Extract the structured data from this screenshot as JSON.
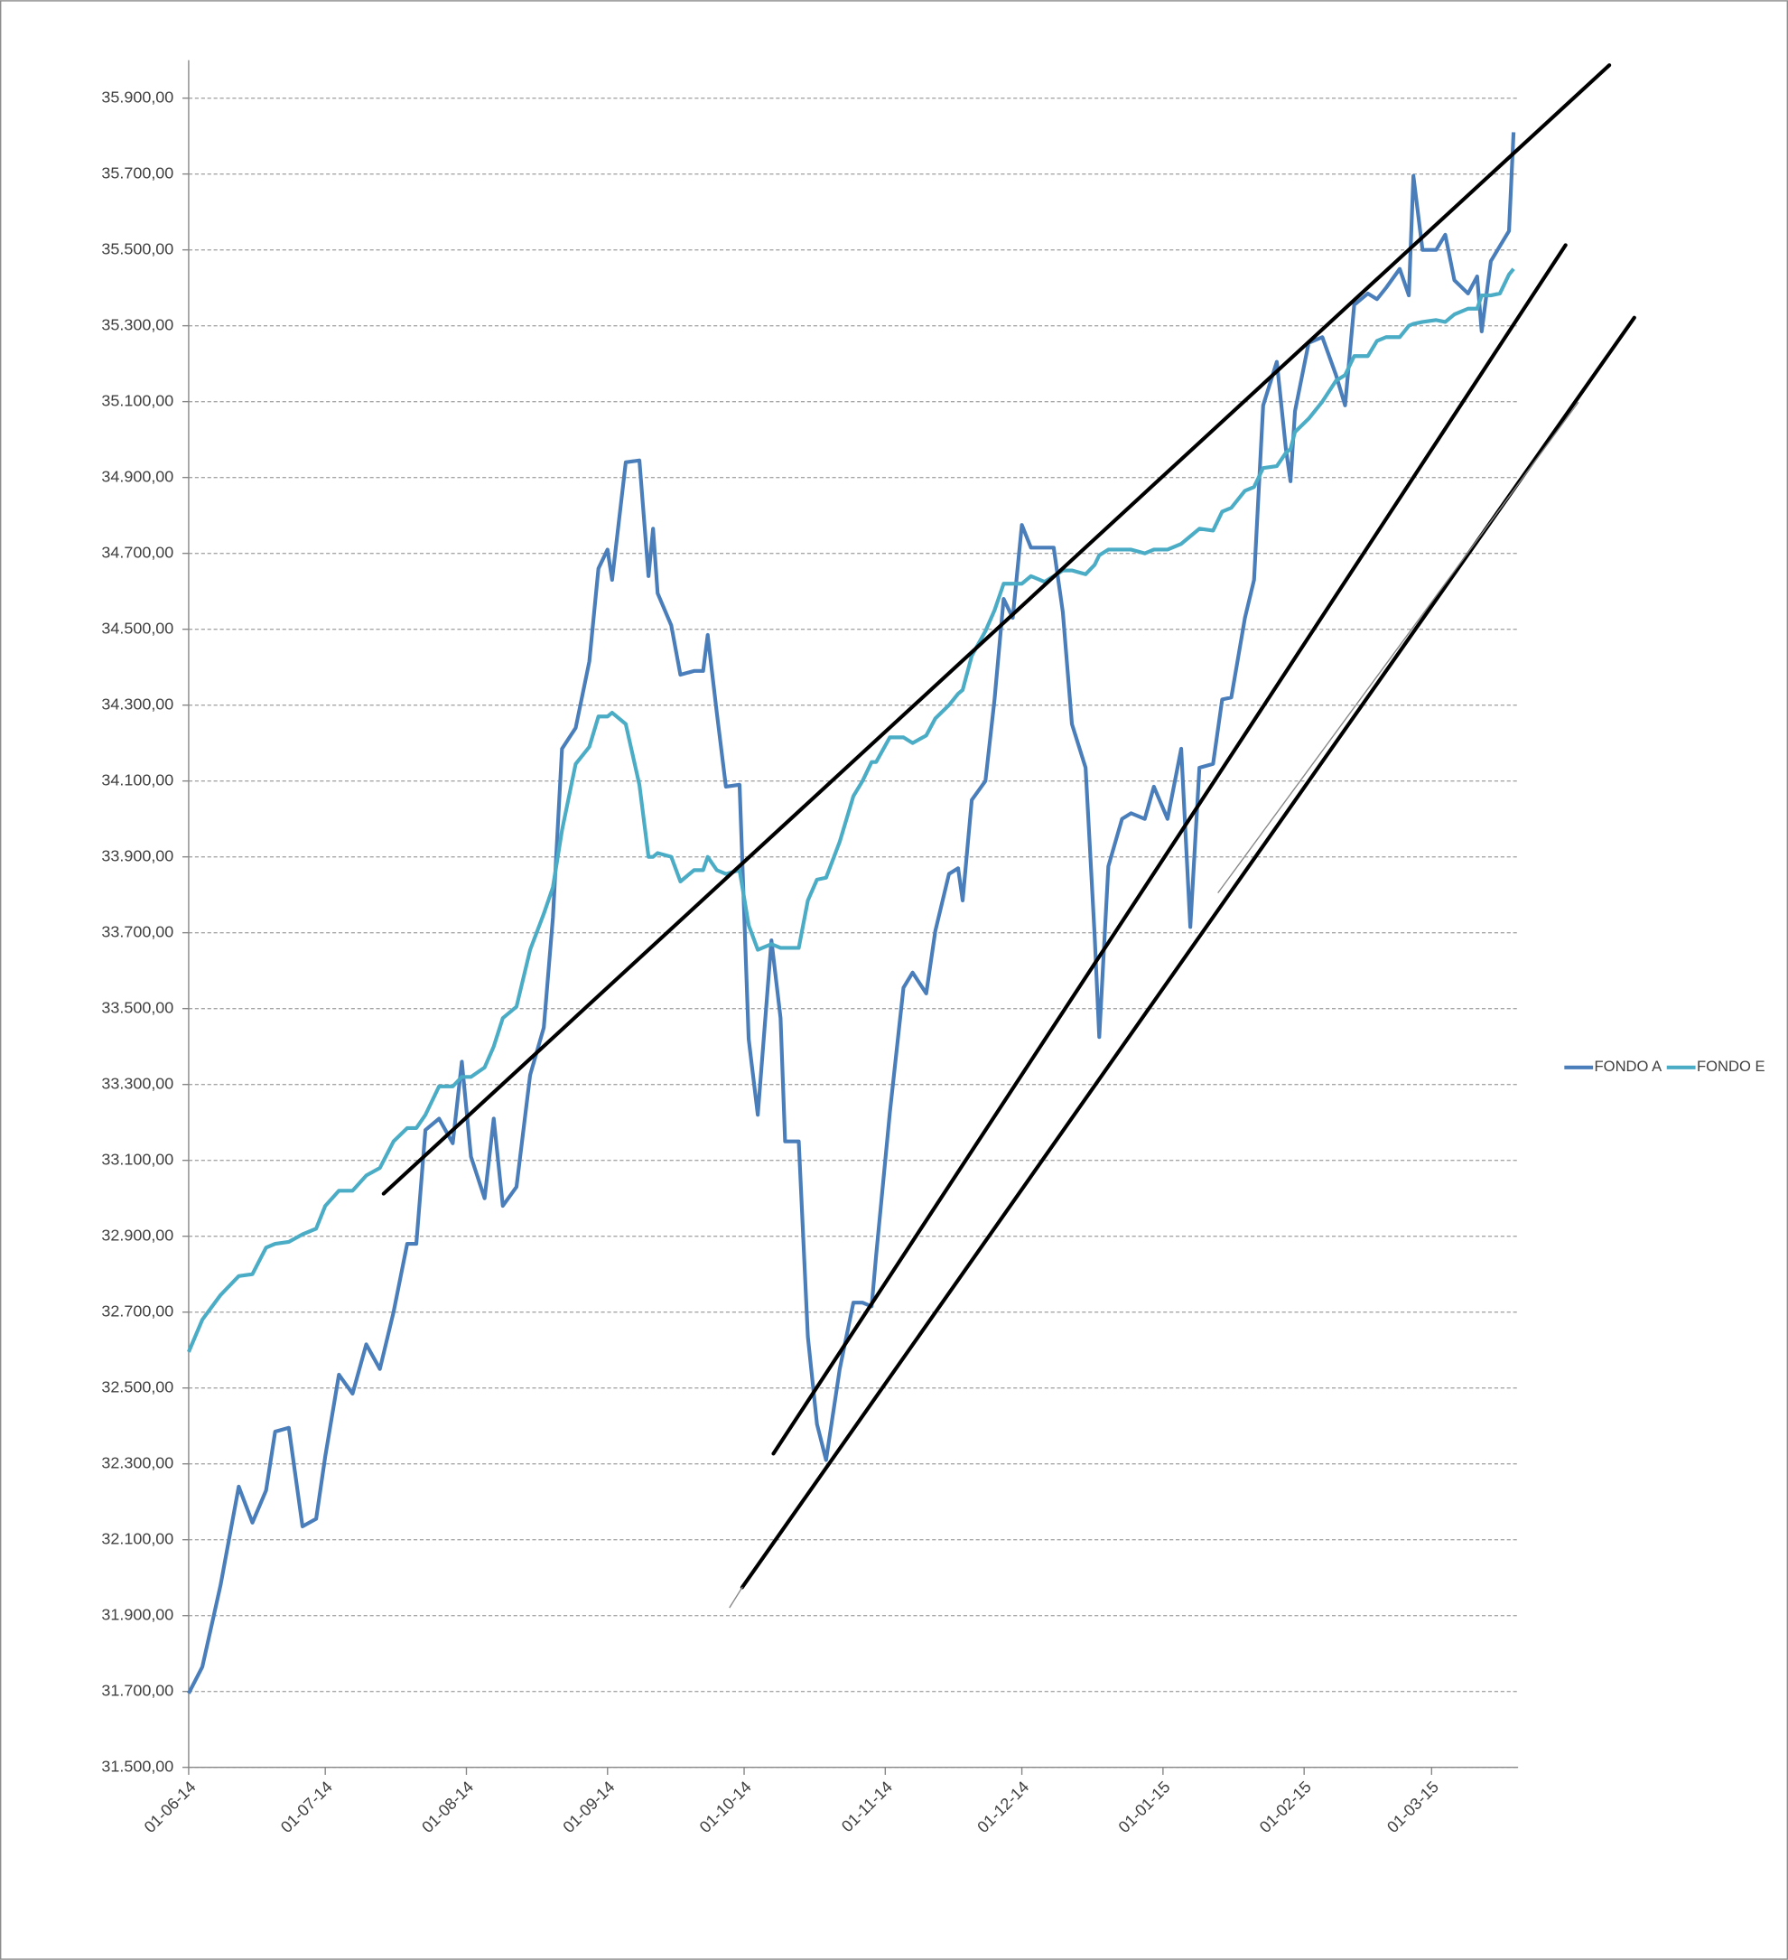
{
  "chart_data": {
    "type": "line",
    "x": [
      "01-06-14",
      "04-06-14",
      "08-06-14",
      "12-06-14",
      "15-06-14",
      "18-06-14",
      "20-06-14",
      "23-06-14",
      "26-06-14",
      "29-06-14",
      "01-07-14",
      "04-07-14",
      "07-07-14",
      "10-07-14",
      "13-07-14",
      "16-07-14",
      "19-07-14",
      "21-07-14",
      "23-07-14",
      "26-07-14",
      "29-07-14",
      "31-07-14",
      "02-08-14",
      "05-08-14",
      "07-08-14",
      "09-08-14",
      "12-08-14",
      "15-08-14",
      "18-08-14",
      "20-08-14",
      "22-08-14",
      "25-08-14",
      "28-08-14",
      "30-08-14",
      "01-09-14",
      "02-09-14",
      "05-09-14",
      "08-09-14",
      "10-09-14",
      "11-09-14",
      "12-09-14",
      "15-09-14",
      "17-09-14",
      "20-09-14",
      "22-09-14",
      "23-09-14",
      "25-09-14",
      "27-09-14",
      "30-09-14",
      "02-10-14",
      "04-10-14",
      "07-10-14",
      "09-10-14",
      "10-10-14",
      "13-10-14",
      "15-10-14",
      "17-10-14",
      "19-10-14",
      "22-10-14",
      "25-10-14",
      "27-10-14",
      "29-10-14",
      "30-10-14",
      "02-11-14",
      "05-11-14",
      "07-11-14",
      "10-11-14",
      "12-11-14",
      "15-11-14",
      "17-11-14",
      "18-11-14",
      "20-11-14",
      "23-11-14",
      "25-11-14",
      "27-11-14",
      "29-11-14",
      "01-12-14",
      "03-12-14",
      "06-12-14",
      "08-12-14",
      "10-12-14",
      "12-12-14",
      "15-12-14",
      "17-12-14",
      "18-12-14",
      "20-12-14",
      "23-12-14",
      "25-12-14",
      "28-12-14",
      "30-12-14",
      "02-01-15",
      "05-01-15",
      "07-01-15",
      "09-01-15",
      "12-01-15",
      "14-01-15",
      "16-01-15",
      "19-01-15",
      "21-01-15",
      "23-01-15",
      "26-01-15",
      "28-01-15",
      "29-01-15",
      "30-01-15",
      "02-02-15",
      "05-02-15",
      "08-02-15",
      "10-02-15",
      "12-02-15",
      "15-02-15",
      "17-02-15",
      "19-02-15",
      "22-02-15",
      "24-02-15",
      "25-02-15",
      "27-02-15",
      "02-03-15",
      "04-03-15",
      "06-03-15",
      "09-03-15",
      "11-03-15",
      "12-03-15",
      "14-03-15",
      "16-03-15",
      "18-03-15",
      "19-03-15"
    ],
    "series": [
      {
        "name": "FONDO A",
        "color": "#4a7ebb",
        "values": [
          31695,
          31765,
          31980,
          32240,
          32145,
          32230,
          32385,
          32395,
          32135,
          32155,
          32320,
          32535,
          32485,
          32615,
          32550,
          32700,
          32880,
          32880,
          33180,
          33210,
          33145,
          33360,
          33110,
          33000,
          33210,
          32980,
          33030,
          33325,
          33450,
          33740,
          34185,
          34240,
          34415,
          34660,
          34710,
          34630,
          34940,
          34945,
          34640,
          34765,
          34595,
          34510,
          34380,
          34390,
          34390,
          34485,
          34280,
          34085,
          34090,
          33420,
          33220,
          33680,
          33475,
          33150,
          33150,
          32635,
          32405,
          32310,
          32550,
          32725,
          32725,
          32715,
          32850,
          33225,
          33555,
          33595,
          33540,
          33705,
          33855,
          33870,
          33785,
          34050,
          34100,
          34315,
          34580,
          34530,
          34775,
          34715,
          34715,
          34715,
          34545,
          34250,
          34135,
          33690,
          33425,
          33875,
          34000,
          34015,
          34000,
          34085,
          34000,
          34185,
          33715,
          34135,
          34145,
          34315,
          34320,
          34530,
          34630,
          35090,
          35205,
          34975,
          34890,
          35075,
          35255,
          35270,
          35170,
          35090,
          35355,
          35385,
          35370,
          35400,
          35450,
          35380,
          35695,
          35500,
          35500,
          35540,
          35420,
          35385,
          35430,
          35285,
          35470,
          35510,
          35550,
          35810
        ]
      },
      {
        "name": "FONDO E",
        "color": "#4bacc6",
        "values": [
          32595,
          32680,
          32745,
          32795,
          32800,
          32870,
          32880,
          32885,
          32905,
          32920,
          32980,
          33020,
          33020,
          33060,
          33080,
          33150,
          33185,
          33185,
          33220,
          33295,
          33295,
          33320,
          33320,
          33345,
          33400,
          33475,
          33505,
          33655,
          33750,
          33820,
          33970,
          34145,
          34190,
          34270,
          34270,
          34280,
          34250,
          34090,
          33900,
          33900,
          33910,
          33900,
          33835,
          33865,
          33865,
          33900,
          33865,
          33855,
          33865,
          33720,
          33655,
          33670,
          33660,
          33660,
          33660,
          33785,
          33840,
          33845,
          33940,
          34060,
          34100,
          34150,
          34150,
          34215,
          34215,
          34200,
          34220,
          34265,
          34300,
          34330,
          34340,
          34430,
          34495,
          34550,
          34620,
          34620,
          34620,
          34640,
          34625,
          34640,
          34655,
          34655,
          34645,
          34670,
          34695,
          34710,
          34710,
          34710,
          34700,
          34710,
          34710,
          34725,
          34745,
          34765,
          34760,
          34810,
          34820,
          34865,
          34875,
          34925,
          34930,
          34965,
          34975,
          35020,
          35055,
          35100,
          35155,
          35170,
          35220,
          35220,
          35260,
          35270,
          35270,
          35300,
          35305,
          35310,
          35315,
          35310,
          35330,
          35345,
          35345,
          35380,
          35380,
          35385,
          35435,
          35450
        ]
      }
    ],
    "xlim": [
      "01-06-14",
      "20-03-15"
    ],
    "xticks": [
      "01-06-14",
      "01-07-14",
      "01-08-14",
      "01-09-14",
      "01-10-14",
      "01-11-14",
      "01-12-14",
      "01-01-15",
      "01-02-15",
      "01-03-15"
    ],
    "ylim": [
      31500,
      36000
    ],
    "yticks": [
      {
        "value": 31500,
        "label": "31.500,00"
      },
      {
        "value": 31700,
        "label": "31.700,00"
      },
      {
        "value": 31900,
        "label": "31.900,00"
      },
      {
        "value": 32100,
        "label": "32.100,00"
      },
      {
        "value": 32300,
        "label": "32.300,00"
      },
      {
        "value": 32500,
        "label": "32.500,00"
      },
      {
        "value": 32700,
        "label": "32.700,00"
      },
      {
        "value": 32900,
        "label": "32.900,00"
      },
      {
        "value": 33100,
        "label": "33.100,00"
      },
      {
        "value": 33300,
        "label": "33.300,00"
      },
      {
        "value": 33500,
        "label": "33.500,00"
      },
      {
        "value": 33700,
        "label": "33.700,00"
      },
      {
        "value": 33900,
        "label": "33.900,00"
      },
      {
        "value": 34100,
        "label": "34.100,00"
      },
      {
        "value": 34300,
        "label": "34.300,00"
      },
      {
        "value": 34500,
        "label": "34.500,00"
      },
      {
        "value": 34700,
        "label": "34.700,00"
      },
      {
        "value": 34900,
        "label": "34.900,00"
      },
      {
        "value": 35100,
        "label": "35.100,00"
      },
      {
        "value": 35300,
        "label": "35.300,00"
      },
      {
        "value": 35500,
        "label": "35.500,00"
      },
      {
        "value": 35700,
        "label": "35.700,00"
      },
      {
        "value": 35900,
        "label": "35.900,00"
      }
    ],
    "grid": true,
    "legend": "right"
  }
}
